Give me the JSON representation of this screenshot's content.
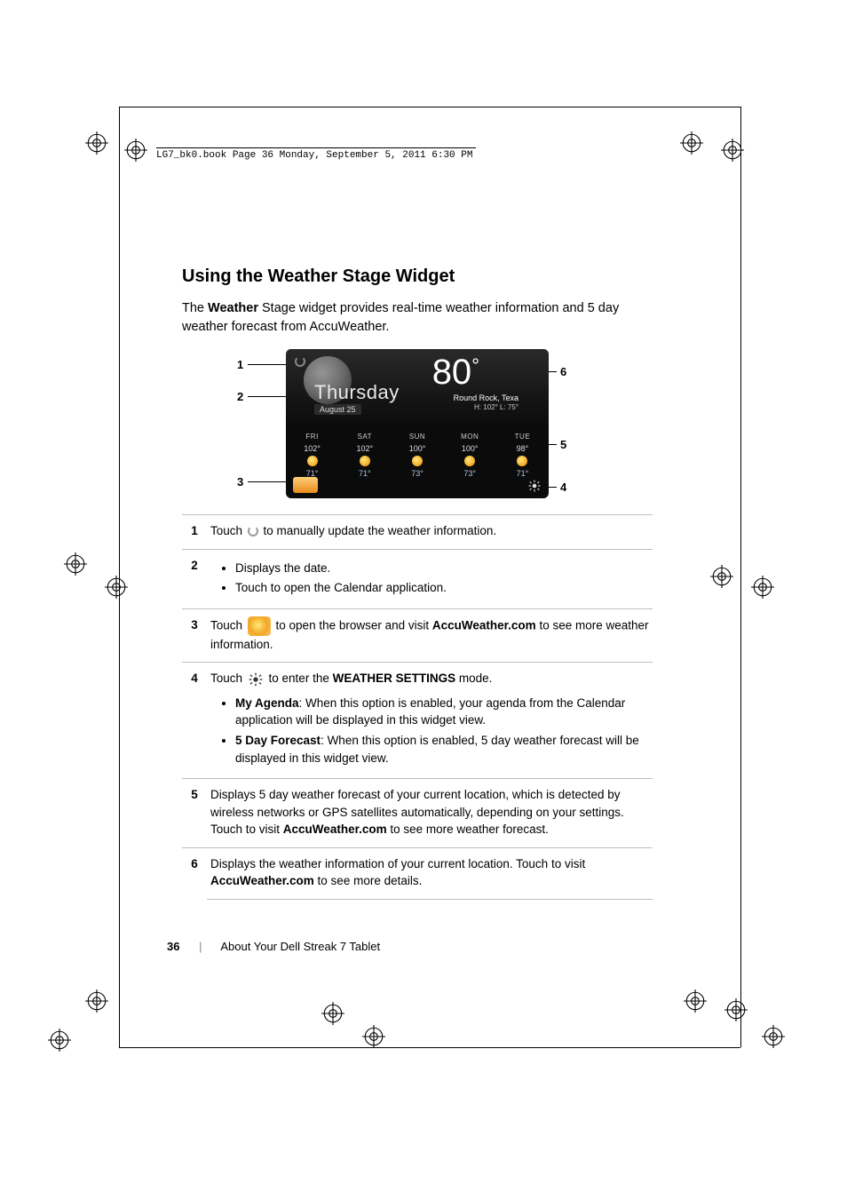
{
  "header_line": "LG7_bk0.book  Page 36  Monday, September 5, 2011  6:30 PM",
  "heading": "Using the Weather Stage Widget",
  "intro_pre": "The ",
  "intro_bold": "Weather",
  "intro_post": " Stage widget provides real-time weather information and 5 day weather forecast from AccuWeather.",
  "widget": {
    "dayname": "Thursday",
    "date": "August 25",
    "temp": "80",
    "location": "Round Rock, Texa",
    "hi_lo": "H: 102°   L: 75°",
    "days": [
      {
        "dn": "FRI",
        "hi": "102°",
        "lo": "71°"
      },
      {
        "dn": "SAT",
        "hi": "102°",
        "lo": "71°"
      },
      {
        "dn": "SUN",
        "hi": "100°",
        "lo": "73°"
      },
      {
        "dn": "MON",
        "hi": "100°",
        "lo": "73°"
      },
      {
        "dn": "TUE",
        "hi": "98°",
        "lo": "71°"
      }
    ]
  },
  "callouts": {
    "c1": "1",
    "c2": "2",
    "c3": "3",
    "c4": "4",
    "c5": "5",
    "c6": "6"
  },
  "rows": {
    "r1_a": "Touch ",
    "r1_b": " to manually update the weather information.",
    "r2_li1": "Displays the date.",
    "r2_li2": "Touch to open the Calendar application.",
    "r3_a": "Touch ",
    "r3_b": " to open the browser and visit ",
    "r3_bold": "AccuWeather.com",
    "r3_c": " to see more weather information.",
    "r4_a": "Touch ",
    "r4_b": " to enter the ",
    "r4_bold": "WEATHER SETTINGS",
    "r4_c": " mode.",
    "r4_li1_bold": "My Agenda",
    "r4_li1": ": When this option is enabled, your agenda from the Calendar application will be displayed in this widget view.",
    "r4_li2_bold": "5 Day Forecast",
    "r4_li2": ": When this option is enabled, 5 day weather forecast will be displayed in this widget view.",
    "r5_a": "Displays 5 day weather forecast of your current location, which is detected by wireless networks or GPS satellites automatically, depending on your settings. Touch to visit ",
    "r5_bold": "AccuWeather.com",
    "r5_b": " to see more weather forecast.",
    "r6_a": "Displays the weather information of your current location. Touch to visit ",
    "r6_bold": "AccuWeather.com",
    "r6_b": " to see more details."
  },
  "footer": {
    "page": "36",
    "section": "About Your Dell Streak 7 Tablet"
  }
}
